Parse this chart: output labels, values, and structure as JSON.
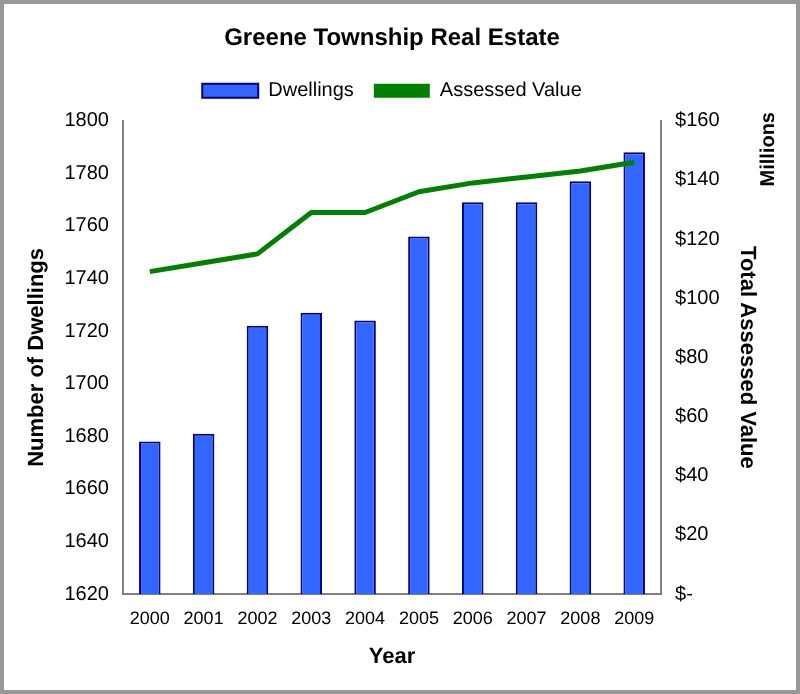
{
  "chart_data": {
    "type": "bar",
    "title": "Greene Township Real Estate",
    "xlabel": "Year",
    "ylabel": "Number of Dwellings",
    "y2label": "Total Assessed Value",
    "annotations": [
      "Millions"
    ],
    "categories": [
      "2000",
      "2001",
      "2002",
      "2003",
      "2004",
      "2005",
      "2006",
      "2007",
      "2008",
      "2009"
    ],
    "series": [
      {
        "name": "Dwellings",
        "color": "#3366ff",
        "values": [
          1678,
          1681,
          1722,
          1727,
          1724,
          1756,
          1769,
          1769,
          1777,
          1788
        ]
      },
      {
        "name": "Assessed Value",
        "type": "line",
        "axis": "y2",
        "color": "#008000",
        "values": [
          109,
          112,
          115,
          129,
          129,
          136,
          139,
          141,
          143,
          146
        ]
      }
    ],
    "ylim": [
      1620,
      1800
    ],
    "yticks": [
      1620,
      1640,
      1660,
      1680,
      1700,
      1720,
      1740,
      1760,
      1780,
      1800
    ],
    "y2lim": [
      0,
      160
    ],
    "y2ticks": [
      {
        "value": 0,
        "label": "$-"
      },
      {
        "value": 20,
        "label": "$20"
      },
      {
        "value": 40,
        "label": "$40"
      },
      {
        "value": 60,
        "label": "$60"
      },
      {
        "value": 80,
        "label": "$80"
      },
      {
        "value": 100,
        "label": "$100"
      },
      {
        "value": 120,
        "label": "$120"
      },
      {
        "value": 140,
        "label": "$140"
      },
      {
        "value": 160,
        "label": "$160"
      }
    ],
    "grid": false,
    "legend": "top",
    "marker": "none"
  }
}
